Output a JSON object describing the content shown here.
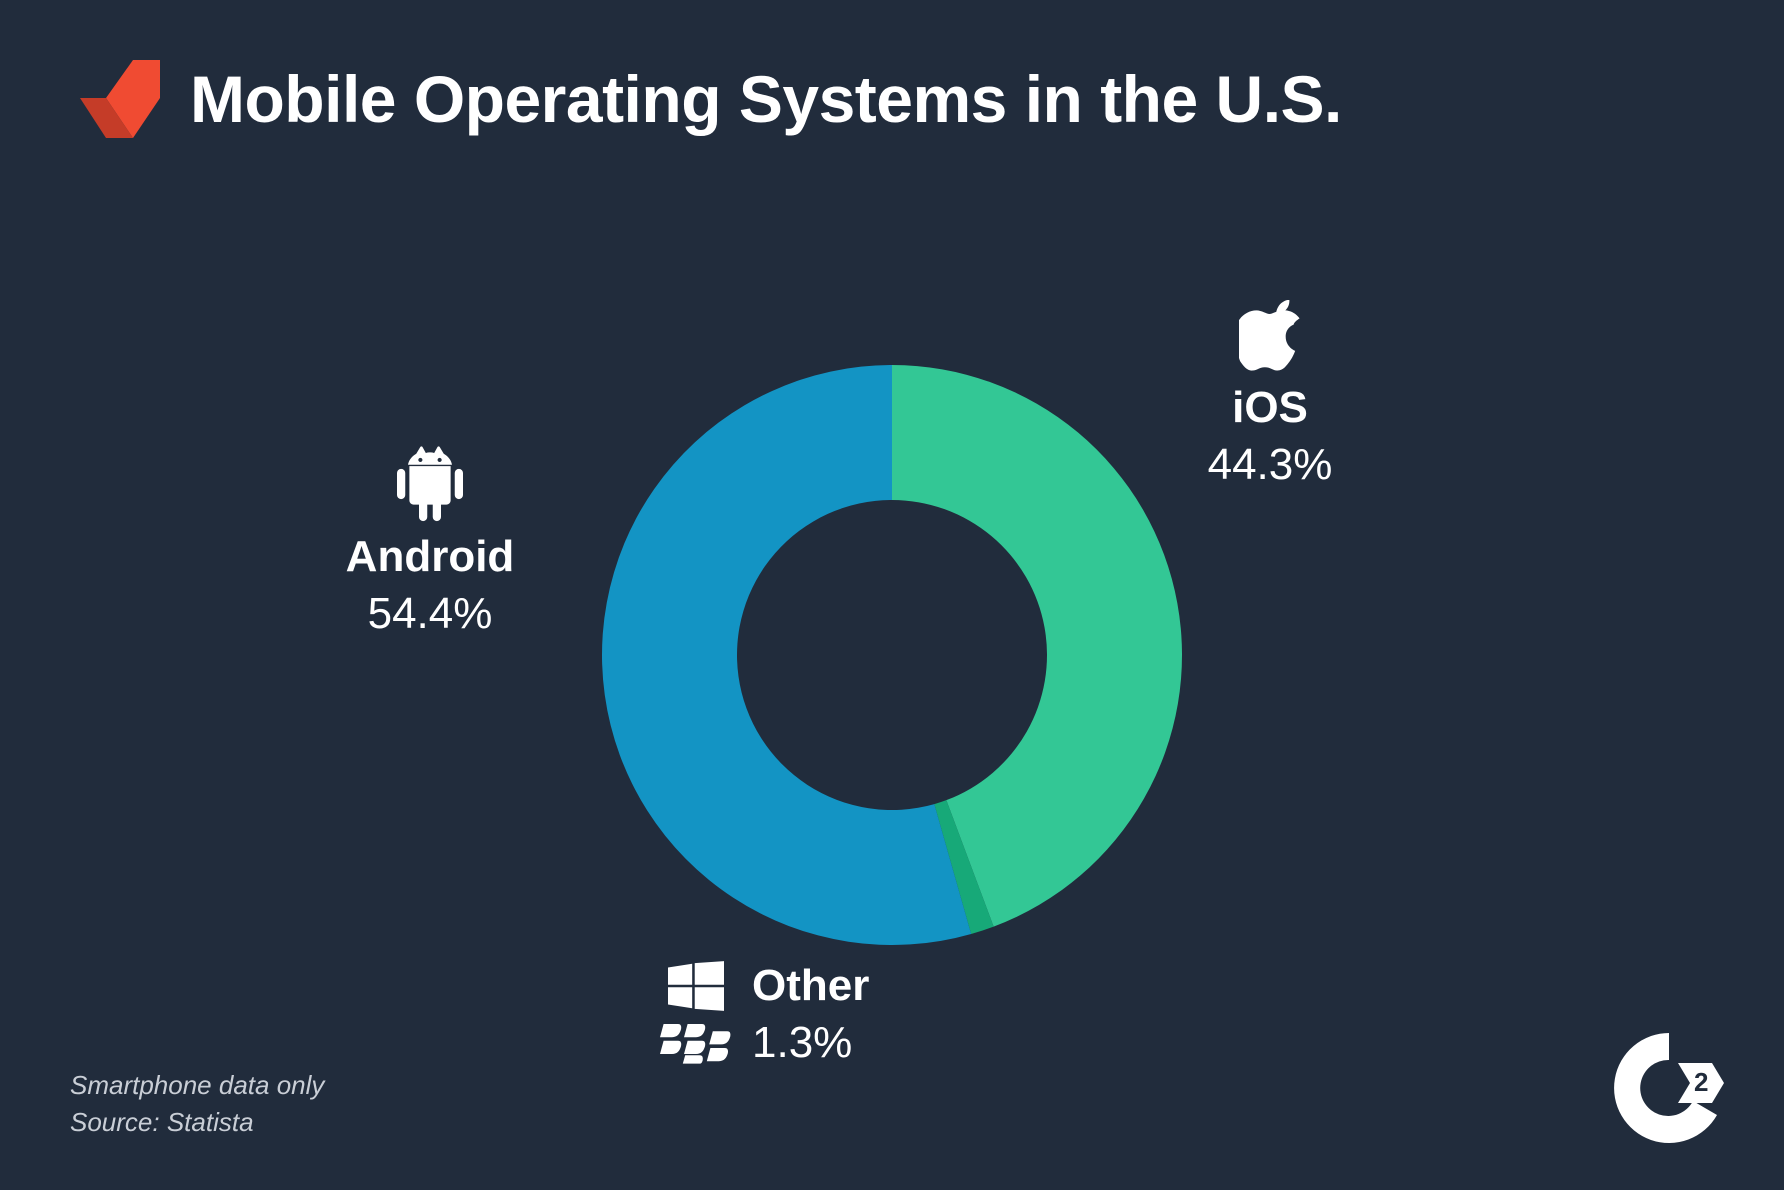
{
  "title": "Mobile Operating Systems in the U.S.",
  "background_color": "#212c3c",
  "logo_color": "#f04b32",
  "chart": {
    "type": "donut",
    "outer_radius": 290,
    "inner_radius": 155,
    "center_fill": "#212c3c",
    "slices": [
      {
        "key": "ios",
        "label": "iOS",
        "value": 44.3,
        "color": "#33c795",
        "start_deg": 0
      },
      {
        "key": "other",
        "label": "Other",
        "value": 1.3,
        "color": "#17a978",
        "start_deg": 159.48
      },
      {
        "key": "android",
        "label": "Android",
        "value": 54.4,
        "color": "#1394c4",
        "start_deg": 164.16
      }
    ]
  },
  "labels": {
    "ios": {
      "name": "iOS",
      "value": "44.3%",
      "icon": "apple",
      "fontsize": 44
    },
    "android": {
      "name": "Android",
      "value": "54.4%",
      "icon": "android",
      "fontsize": 44
    },
    "other": {
      "name": "Other",
      "value": "1.3%",
      "icons": [
        "windows",
        "blackberry"
      ],
      "fontsize": 44
    }
  },
  "footnote": {
    "line1": "Smartphone data only",
    "line2": "Source: Statista",
    "fontsize": 26,
    "color": "#c9ced6"
  },
  "brand_badge": "G2",
  "text_color": "#ffffff"
}
